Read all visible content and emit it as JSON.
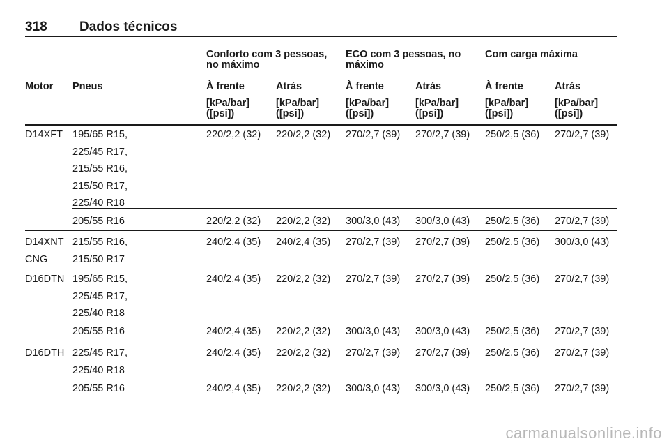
{
  "page": {
    "number": "318",
    "title": "Dados técnicos"
  },
  "headers": {
    "groups": [
      "Conforto com 3 pessoas, no máximo",
      "ECO com 3 pessoas, no máximo",
      "Com carga máxima"
    ],
    "motor": "Motor",
    "tires": "Pneus",
    "front": "À frente",
    "rear": "Atrás",
    "unit_line1": "[kPa/bar]",
    "unit_line2": "([psi])"
  },
  "rows": [
    {
      "motor": [
        "D14XFT"
      ],
      "tires": [
        "195/65 R15,",
        "225/45 R17,",
        "215/55 R16,",
        "215/50 R17,",
        "225/40 R18"
      ],
      "values": [
        "220/2,2 (32)",
        "220/2,2 (32)",
        "270/2,7 (39)",
        "270/2,7 (39)",
        "250/2,5 (36)",
        "270/2,7 (39)"
      ]
    },
    {
      "motor": [],
      "tires": [
        "205/55 R16"
      ],
      "values": [
        "220/2,2 (32)",
        "220/2,2 (32)",
        "300/3,0 (43)",
        "300/3,0 (43)",
        "250/2,5 (36)",
        "270/2,7 (39)"
      ]
    },
    {
      "motor": [
        "D14XNT",
        "CNG"
      ],
      "tires": [
        "215/55 R16,",
        "215/50 R17"
      ],
      "values": [
        "240/2,4 (35)",
        "240/2,4 (35)",
        "270/2,7 (39)",
        "270/2,7 (39)",
        "250/2,5 (36)",
        "300/3,0 (43)"
      ]
    },
    {
      "motor": [
        "D16DTN"
      ],
      "tires": [
        "195/65 R15,",
        "225/45 R17,",
        "225/40 R18"
      ],
      "values": [
        "240/2,4 (35)",
        "220/2,2 (32)",
        "270/2,7 (39)",
        "270/2,7 (39)",
        "250/2,5 (36)",
        "270/2,7 (39)"
      ]
    },
    {
      "motor": [],
      "tires": [
        "205/55 R16"
      ],
      "values": [
        "240/2,4 (35)",
        "220/2,2 (32)",
        "300/3,0 (43)",
        "300/3,0 (43)",
        "250/2,5 (36)",
        "270/2,7 (39)"
      ]
    },
    {
      "motor": [
        "D16DTH"
      ],
      "tires": [
        "225/45 R17,",
        "225/40 R18"
      ],
      "values": [
        "240/2,4 (35)",
        "220/2,2 (32)",
        "270/2,7 (39)",
        "270/2,7 (39)",
        "250/2,5 (36)",
        "270/2,7 (39)"
      ]
    },
    {
      "motor": [],
      "tires": [
        "205/55 R16"
      ],
      "values": [
        "240/2,4 (35)",
        "220/2,2 (32)",
        "300/3,0 (43)",
        "300/3,0 (43)",
        "250/2,5 (36)",
        "270/2,7 (39)"
      ]
    }
  ],
  "watermark": "carmanualsonline.info"
}
